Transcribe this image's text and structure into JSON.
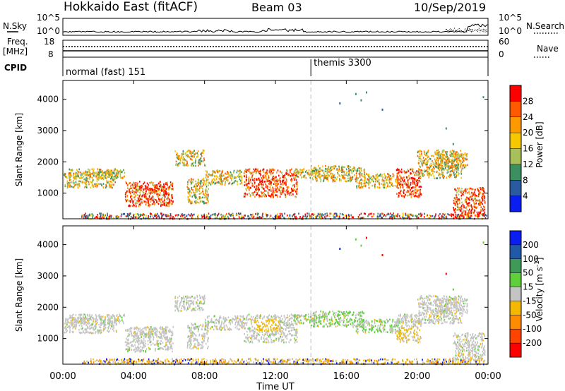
{
  "header": {
    "station": "Hokkaido East (fitACF)",
    "beam": "Beam 03",
    "date": "10/Sep/2019"
  },
  "strip_nsky": {
    "left_label": "N.Sky",
    "right_label": "N.Search",
    "ticks_left": [
      "10^5",
      "10^0"
    ],
    "ticks_right": [
      "10^5",
      "10^0"
    ]
  },
  "strip_freq": {
    "left_label": "Freq.",
    "left_unit": "[MHz]",
    "right_label": "Nave",
    "ticks_left": [
      "18",
      "8"
    ],
    "ticks_right": [
      "60",
      "0"
    ]
  },
  "strip_cpid": {
    "label": "CPID",
    "modes": [
      {
        "name": "normal (fast) 151",
        "start_hour": 0
      },
      {
        "name": "themis 3300",
        "start_hour": 14
      }
    ]
  },
  "time_axis": {
    "xlabel": "Time UT",
    "ticks": [
      "00:00",
      "04:00",
      "08:00",
      "12:00",
      "16:00",
      "20:00",
      "00:00"
    ],
    "tick_hours": [
      0,
      4,
      8,
      12,
      16,
      20,
      24
    ]
  },
  "chart_data": [
    {
      "type": "heatmap",
      "panel": "power",
      "ylabel": "Slant Range [km]",
      "yticks": [
        1000,
        2000,
        3000,
        4000
      ],
      "ylim": [
        180,
        4600
      ],
      "xlim_hours": [
        0,
        24
      ],
      "colorbar": {
        "label": "Power [dB]",
        "ticks": [
          "28",
          "24",
          "20",
          "16",
          "12",
          "8",
          "4"
        ],
        "colors": [
          "#ff0000",
          "#ff5a00",
          "#ff9900",
          "#f7c800",
          "#a8c05a",
          "#3c9060",
          "#2a5aa0",
          "#0a1ef0"
        ]
      }
    },
    {
      "type": "heatmap",
      "panel": "velocity",
      "ylabel": "Slant Range [km]",
      "yticks": [
        1000,
        2000,
        3000,
        4000
      ],
      "ylim": [
        180,
        4600
      ],
      "xlim_hours": [
        0,
        24
      ],
      "colorbar": {
        "label": "Velocity [m s^-1]",
        "ticks": [
          "200",
          "100",
          "50",
          "15",
          "-15",
          "-50",
          "-100",
          "-200"
        ],
        "colors": [
          "#0a1ef0",
          "#1f5aa8",
          "#3f9a58",
          "#5fd03c",
          "#c4c4c4",
          "#f3b900",
          "#ff8c00",
          "#ff4400",
          "#ff0000"
        ]
      }
    }
  ],
  "colors": {
    "gray_flag": "#c4c4c4",
    "axis": "#000000"
  }
}
